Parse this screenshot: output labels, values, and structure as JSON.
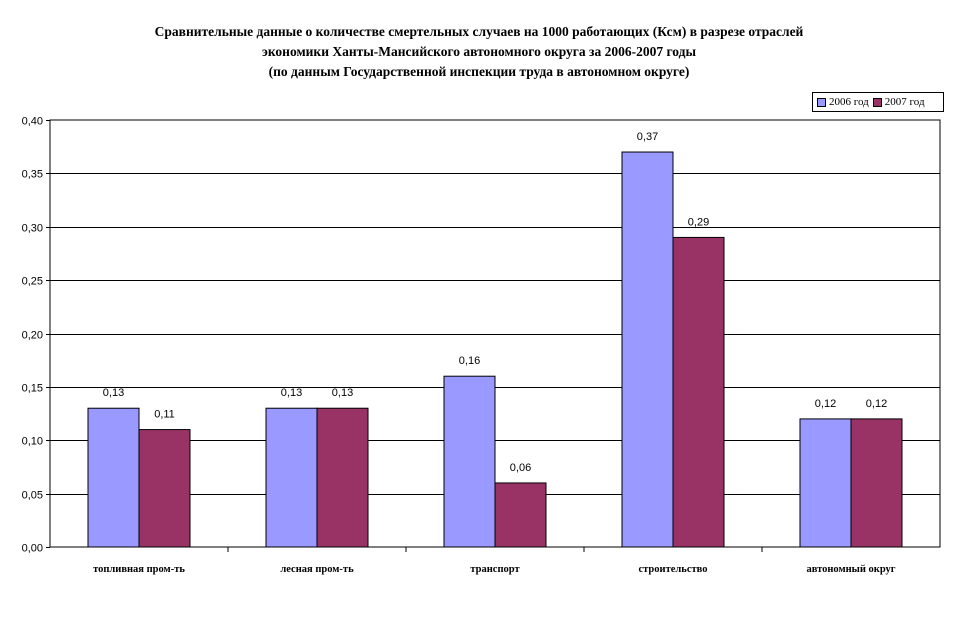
{
  "chart_data": {
    "type": "bar",
    "title_lines": [
      "Сравнительные данные о количестве смертельных случаев  на 1000 работающих (Ксм) в разрезе отраслей",
      "экономики Ханты-Мансийского автономного округа за  2006-2007 годы",
      "(по данным Государственной инспекции труда в автономном округе)"
    ],
    "categories": [
      "топливная пром-ть",
      "лесная пром-ть",
      "транспорт",
      "строительство",
      "автономный округ"
    ],
    "series": [
      {
        "name": "2006 год",
        "values": [
          0.13,
          0.13,
          0.16,
          0.37,
          0.12
        ],
        "color": "#9999ff"
      },
      {
        "name": "2007 год",
        "values": [
          0.11,
          0.13,
          0.06,
          0.29,
          0.12
        ],
        "color": "#993366"
      }
    ],
    "data_labels": [
      [
        "0,13",
        "0,13",
        "0,16",
        "0,37",
        "0,12"
      ],
      [
        "0,11",
        "0,13",
        "0,06",
        "0,29",
        "0,12"
      ]
    ],
    "y_ticks": [
      "0,00",
      "0,05",
      "0,10",
      "0,15",
      "0,20",
      "0,25",
      "0,30",
      "0,35",
      "0,40"
    ],
    "ylim": [
      0,
      0.4
    ],
    "y_step": 0.05,
    "grid": true,
    "legend_position": "top-right"
  }
}
